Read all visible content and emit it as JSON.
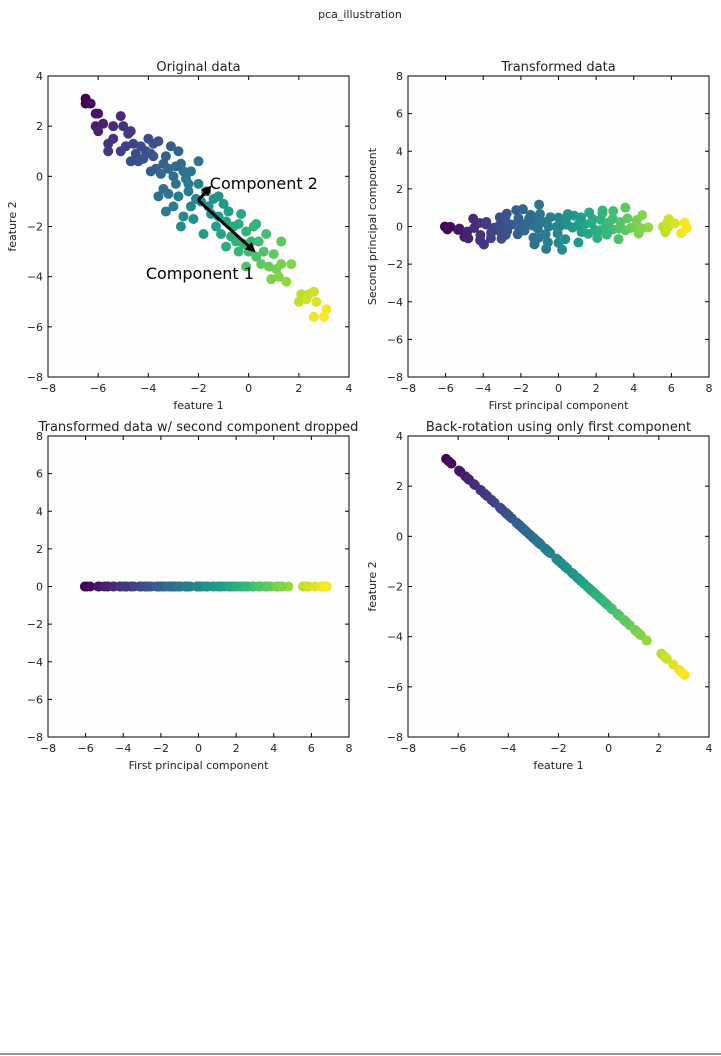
{
  "chart_data": {
    "type": "scatter",
    "suptitle": "pca_illustration",
    "colormap": "viridis",
    "pca": {
      "components": [
        [
          0.74,
          -0.67
        ],
        [
          0.67,
          0.74
        ]
      ],
      "arrow_lengths": [
        3.1,
        0.8
      ]
    },
    "points": [
      [
        -6.5,
        3.1
      ],
      [
        -6.5,
        2.9
      ],
      [
        -6.3,
        2.9
      ],
      [
        -6.1,
        2.5
      ],
      [
        -6.0,
        2.5
      ],
      [
        -6.1,
        2.0
      ],
      [
        -6.0,
        1.8
      ],
      [
        -5.8,
        2.1
      ],
      [
        -5.6,
        1.3
      ],
      [
        -5.4,
        1.5
      ],
      [
        -5.4,
        2.0
      ],
      [
        -5.1,
        2.4
      ],
      [
        -5.0,
        2.0
      ],
      [
        -5.1,
        1.0
      ],
      [
        -4.9,
        1.2
      ],
      [
        -4.8,
        1.7
      ],
      [
        -4.7,
        1.8
      ],
      [
        -4.6,
        1.3
      ],
      [
        -4.5,
        0.9
      ],
      [
        -4.4,
        0.6
      ],
      [
        -4.2,
        0.7
      ],
      [
        -4.1,
        1.0
      ],
      [
        -4.0,
        1.5
      ],
      [
        -3.8,
        1.3
      ],
      [
        -3.8,
        0.8
      ],
      [
        -3.6,
        1.4
      ],
      [
        -3.7,
        0.3
      ],
      [
        -3.5,
        0.1
      ],
      [
        -3.4,
        0.5
      ],
      [
        -3.3,
        0.8
      ],
      [
        -3.1,
        1.2
      ],
      [
        -2.8,
        1.0
      ],
      [
        -3.2,
        0.3
      ],
      [
        -3.0,
        0.0
      ],
      [
        -2.9,
        -0.3
      ],
      [
        -2.7,
        0.5
      ],
      [
        -2.6,
        0.2
      ],
      [
        -2.5,
        -0.1
      ],
      [
        -2.3,
        0.2
      ],
      [
        -2.0,
        0.6
      ],
      [
        -3.4,
        -0.5
      ],
      [
        -3.6,
        -0.8
      ],
      [
        -3.2,
        -0.7
      ],
      [
        -3.0,
        -1.2
      ],
      [
        -2.8,
        -0.8
      ],
      [
        -2.6,
        -1.6
      ],
      [
        -2.4,
        -0.6
      ],
      [
        -2.3,
        -1.2
      ],
      [
        -2.2,
        -1.7
      ],
      [
        -2.0,
        -0.3
      ],
      [
        -1.9,
        -1.0
      ],
      [
        -1.7,
        -0.6
      ],
      [
        -1.5,
        -1.5
      ],
      [
        -1.4,
        -0.9
      ],
      [
        -1.3,
        -2.0
      ],
      [
        -1.2,
        -1.6
      ],
      [
        -1.1,
        -2.3
      ],
      [
        -0.9,
        -1.8
      ],
      [
        -0.8,
        -1.4
      ],
      [
        -0.7,
        -2.4
      ],
      [
        -0.6,
        -2.0
      ],
      [
        -0.5,
        -2.6
      ],
      [
        -0.4,
        -1.9
      ],
      [
        -0.2,
        -2.7
      ],
      [
        -0.1,
        -2.2
      ],
      [
        0.0,
        -3.0
      ],
      [
        0.1,
        -2.6
      ],
      [
        0.2,
        -2.0
      ],
      [
        0.3,
        -3.2
      ],
      [
        0.4,
        -2.6
      ],
      [
        0.5,
        -3.5
      ],
      [
        0.6,
        -3.0
      ],
      [
        0.7,
        -2.3
      ],
      [
        0.8,
        -3.6
      ],
      [
        0.9,
        -4.1
      ],
      [
        1.0,
        -3.1
      ],
      [
        1.1,
        -3.7
      ],
      [
        1.3,
        -2.6
      ],
      [
        1.3,
        -3.5
      ],
      [
        1.5,
        -4.2
      ],
      [
        1.7,
        -3.5
      ],
      [
        -0.1,
        -3.6
      ],
      [
        2.0,
        -5.0
      ],
      [
        2.1,
        -4.7
      ],
      [
        2.3,
        -4.9
      ],
      [
        2.4,
        -4.7
      ],
      [
        2.6,
        -4.6
      ],
      [
        2.7,
        -5.0
      ],
      [
        2.6,
        -5.6
      ],
      [
        3.1,
        -5.3
      ],
      [
        3.0,
        -5.6
      ],
      [
        -4.7,
        0.6
      ],
      [
        -5.6,
        1.0
      ],
      [
        -3.9,
        0.2
      ],
      [
        -1.8,
        -2.3
      ],
      [
        -2.7,
        -2.0
      ],
      [
        -3.3,
        -1.4
      ],
      [
        -2.1,
        -0.9
      ],
      [
        -1.6,
        -1.2
      ],
      [
        -1.0,
        -1.1
      ],
      [
        -3.9,
        0.9
      ],
      [
        -4.3,
        1.2
      ],
      [
        -2.9,
        0.4
      ],
      [
        -2.4,
        -0.3
      ],
      [
        -1.2,
        -0.8
      ],
      [
        -0.3,
        -1.5
      ],
      [
        0.3,
        -1.9
      ],
      [
        -0.9,
        -2.8
      ],
      [
        -0.4,
        -3.0
      ],
      [
        1.2,
        -4.0
      ]
    ],
    "panels": [
      {
        "title": "Original data",
        "xlabel": "feature 1",
        "ylabel": "feature 2",
        "xlim": [
          -8,
          4
        ],
        "ylim": [
          -8,
          4
        ],
        "xticks": [
          "−8",
          "−6",
          "−4",
          "−2",
          "0",
          "2",
          "4"
        ],
        "yticks": [
          "−8",
          "−6",
          "−4",
          "−2",
          "0",
          "2",
          "4"
        ],
        "annotations": [
          "Component 1",
          "Component 2"
        ]
      },
      {
        "title": "Transformed data",
        "xlabel": "First principal component",
        "ylabel": "Second principal component",
        "xlim": [
          -8,
          8
        ],
        "ylim": [
          -8,
          8
        ],
        "xticks": [
          "−8",
          "−6",
          "−4",
          "−2",
          "0",
          "2",
          "4",
          "6",
          "8"
        ],
        "yticks": [
          "−8",
          "−6",
          "−4",
          "−2",
          "0",
          "2",
          "4",
          "6",
          "8"
        ]
      },
      {
        "title": "Transformed data w/ second component dropped",
        "xlabel": "First principal component",
        "ylabel": "",
        "xlim": [
          -8,
          8
        ],
        "ylim": [
          -8,
          8
        ],
        "xticks": [
          "−8",
          "−6",
          "−4",
          "−2",
          "0",
          "2",
          "4",
          "6",
          "8"
        ],
        "yticks": [
          "−8",
          "−6",
          "−4",
          "−2",
          "0",
          "2",
          "4",
          "6",
          "8"
        ]
      },
      {
        "title": "Back-rotation using only first component",
        "xlabel": "feature 1",
        "ylabel": "feature 2",
        "xlim": [
          -8,
          4
        ],
        "ylim": [
          -8,
          4
        ],
        "xticks": [
          "−8",
          "−6",
          "−4",
          "−2",
          "0",
          "2",
          "4"
        ],
        "yticks": [
          "−8",
          "−6",
          "−4",
          "−2",
          "0",
          "2",
          "4"
        ]
      }
    ]
  }
}
